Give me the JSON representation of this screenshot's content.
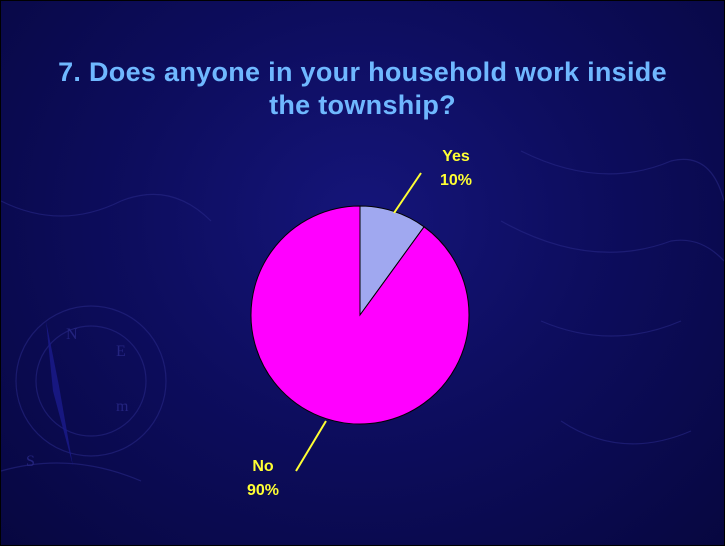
{
  "slide": {
    "title_line1": "7. Does anyone in your household work inside",
    "title_line2": "the township?"
  },
  "colors": {
    "background": "#0d0d5e",
    "title": "#6fb8ff",
    "label": "#ffff33",
    "leader_line": "#ffff33",
    "slice_yes": "#a0a8f0",
    "slice_no": "#ff00ff"
  },
  "chart_data": {
    "type": "pie",
    "title": "7. Does anyone in your household work inside the township?",
    "start_angle_deg": 0,
    "direction": "clockwise",
    "slices": [
      {
        "label": "Yes",
        "value": 10,
        "display": "10%",
        "color": "#a0a8f0"
      },
      {
        "label": "No",
        "value": 90,
        "display": "90%",
        "color": "#ff00ff"
      }
    ],
    "legend": "none",
    "data_labels": "outside-with-leader-lines"
  }
}
